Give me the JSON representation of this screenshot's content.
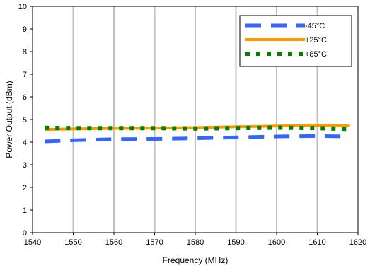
{
  "chart_data": {
    "type": "line",
    "title": "",
    "xlabel": "Frequency (MHz)",
    "ylabel": "Power Output (dBm)",
    "xlim": [
      1540,
      1620
    ],
    "ylim": [
      0,
      10
    ],
    "xticks": [
      "1540",
      "1550",
      "1560",
      "1570",
      "1580",
      "1590",
      "1600",
      "1610",
      "1620"
    ],
    "yticks": [
      "0",
      "1",
      "2",
      "3",
      "4",
      "5",
      "6",
      "7",
      "8",
      "9",
      "10"
    ],
    "grid": "vertical",
    "legend_position": "top-right",
    "x": [
      1543,
      1550,
      1560,
      1570,
      1580,
      1590,
      1600,
      1610,
      1618
    ],
    "series": [
      {
        "name": "-45°C",
        "color": "#3366FF",
        "style": "dash",
        "values": [
          4.03,
          4.08,
          4.13,
          4.14,
          4.17,
          4.21,
          4.25,
          4.27,
          4.25
        ]
      },
      {
        "name": "+25°C",
        "color": "#FF9900",
        "style": "solid",
        "values": [
          4.56,
          4.58,
          4.61,
          4.62,
          4.64,
          4.68,
          4.71,
          4.74,
          4.72
        ]
      },
      {
        "name": "+85°C",
        "color": "#007F00",
        "style": "dot",
        "values": [
          4.63,
          4.62,
          4.62,
          4.62,
          4.6,
          4.62,
          4.64,
          4.62,
          4.58
        ]
      }
    ]
  }
}
